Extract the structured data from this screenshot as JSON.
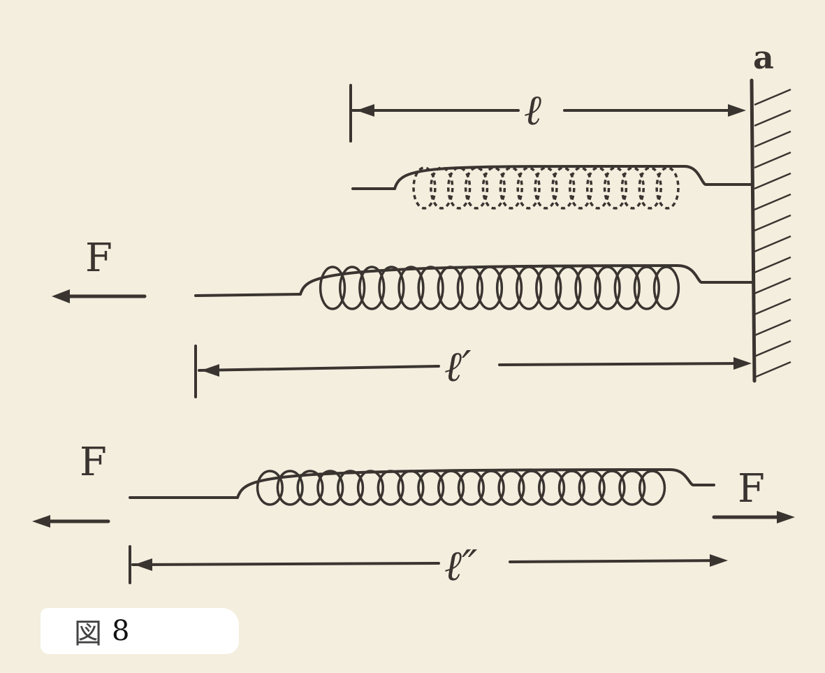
{
  "labels": {
    "wall": "a",
    "length_natural": "ℓ",
    "length_wall_stretched": "ℓ′",
    "length_free_stretched": "ℓ″",
    "force_wall_case": "F",
    "force_free_left": "F",
    "force_free_right": "F"
  },
  "caption": {
    "mark": "図",
    "number": "8"
  }
}
